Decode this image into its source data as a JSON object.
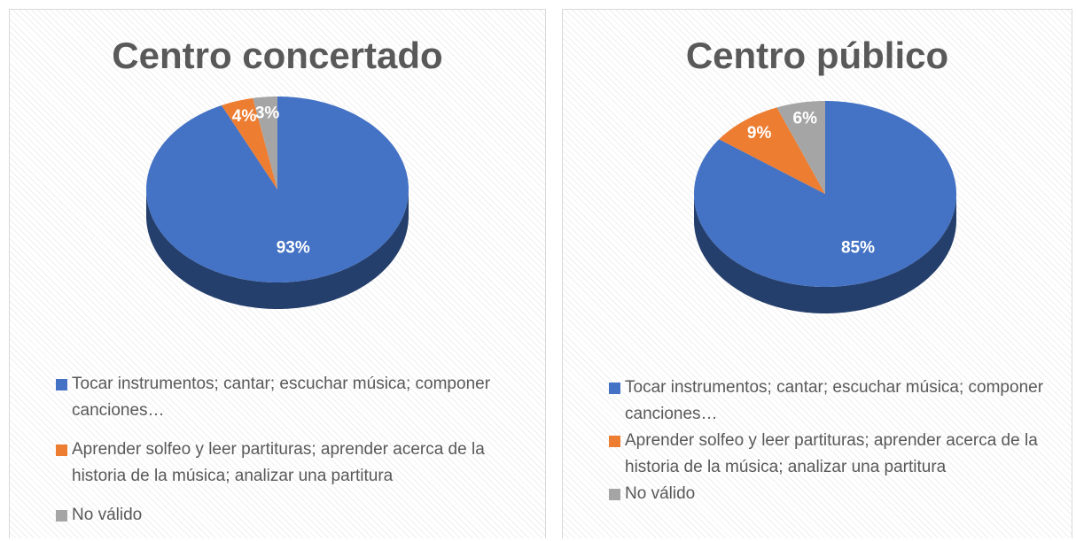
{
  "chart_data": [
    {
      "type": "pie",
      "title": "Centro concertado",
      "categories": [
        "Tocar instrumentos; cantar; escuchar música; componer canciones…",
        "Aprender solfeo y leer partituras; aprender acerca de la historia de la música; analizar una partitura",
        "No válido"
      ],
      "values": [
        93,
        4,
        3
      ],
      "value_labels": [
        "93%",
        "4%",
        "3%"
      ],
      "colors": [
        "#4472c4",
        "#ed7d31",
        "#a5a5a5"
      ],
      "legend": "bottom"
    },
    {
      "type": "pie",
      "title": "Centro público",
      "categories": [
        "Tocar instrumentos; cantar; escuchar música; componer canciones…",
        "Aprender solfeo y leer partituras; aprender acerca de la historia de la música; analizar una partitura",
        "No válido"
      ],
      "values": [
        85,
        9,
        6
      ],
      "value_labels": [
        "85%",
        "9%",
        "6%"
      ],
      "colors": [
        "#4472c4",
        "#ed7d31",
        "#a5a5a5"
      ],
      "legend": "bottom"
    }
  ]
}
